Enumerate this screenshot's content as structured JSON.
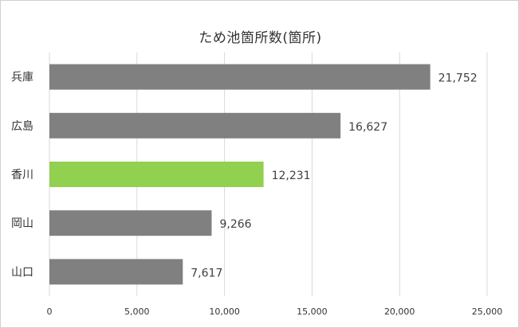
{
  "chart_data": {
    "type": "bar",
    "orientation": "horizontal",
    "title": "ため池箇所数(箇所)",
    "categories": [
      "兵庫",
      "広島",
      "香川",
      "岡山",
      "山口"
    ],
    "values": [
      21752,
      16627,
      12231,
      9266,
      7617
    ],
    "value_labels": [
      "21,752",
      "16,627",
      "12,231",
      "9,266",
      "7,617"
    ],
    "highlight_category": "香川",
    "colors": {
      "default": "#808080",
      "highlight": "#92d050",
      "grid": "#d9d9d9"
    },
    "xlim": [
      0,
      25000
    ],
    "x_ticks": [
      0,
      5000,
      10000,
      15000,
      20000,
      25000
    ],
    "x_tick_labels": [
      "0",
      "5,000",
      "10,000",
      "15,000",
      "20,000",
      "25,000"
    ],
    "grid": true,
    "legend": "none"
  }
}
